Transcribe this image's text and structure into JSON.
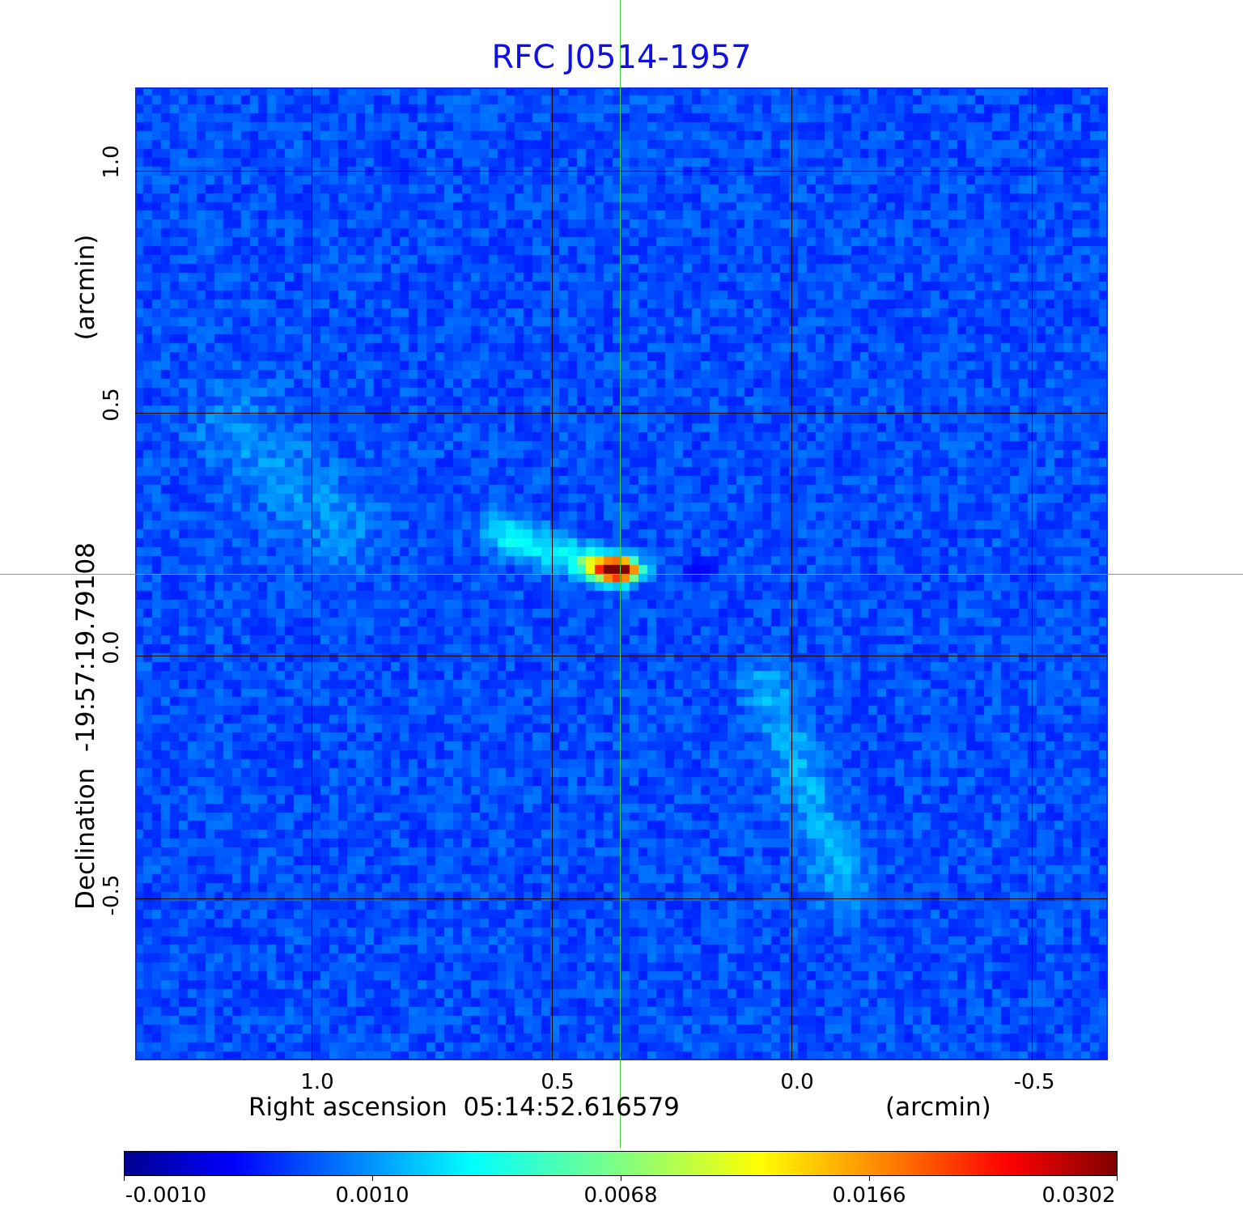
{
  "chart_data": {
    "type": "heatmap",
    "title": "RFC J0514-1957",
    "xlabel": "Right ascension  05:14:52.616579",
    "xlabel_unit": "(arcmin)",
    "ylabel": "Declination  -19:57:19.79108",
    "ylabel_unit": "(arcmin)",
    "x_ticks": [
      "1.0",
      "0.5",
      "0.0",
      "-0.5"
    ],
    "x_tick_values": [
      1.0,
      0.5,
      0.0,
      -0.5
    ],
    "y_ticks": [
      "1.0",
      "0.5",
      "0.0",
      "-0.5"
    ],
    "y_tick_values": [
      1.0,
      0.5,
      0.0,
      -0.5
    ],
    "xlim": [
      1.37,
      -0.65
    ],
    "ylim": [
      -0.83,
      1.17
    ],
    "grid": true,
    "colormap": "jet",
    "colorbar": {
      "ticks": [
        "-0.0010",
        "0.0010",
        "0.0068",
        "0.0166",
        "0.0302"
      ],
      "values": [
        -0.001,
        0.001,
        0.0068,
        0.0166,
        0.0302
      ],
      "placement": "bottom"
    },
    "crosshair": {
      "ra_offset": 0.14,
      "dec_offset": 0.17
    },
    "peak_value": 0.0302
  },
  "colors": {
    "title": "#1010e0",
    "crosshair": "#40d040",
    "frame": "#1030e0"
  }
}
